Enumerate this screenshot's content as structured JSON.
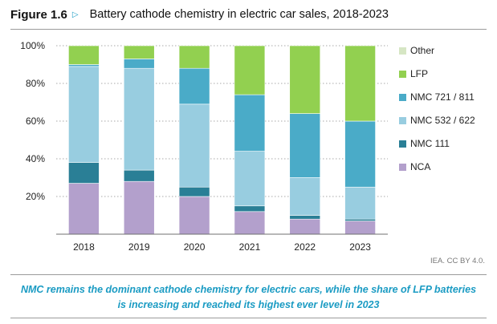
{
  "figure": {
    "label": "Figure 1.6",
    "arrow_icon": "play-outline-icon",
    "credit": "IEA. CC BY 4.0.",
    "caption": "NMC remains the dominant cathode chemistry for electric cars, while the share of LFP batteries is increasing and reached its highest ever level in 2023",
    "accent_color": "#1a9bc3"
  },
  "chart_data": {
    "type": "bar",
    "stacked": true,
    "title": "Battery cathode chemistry in electric car sales, 2018-2023",
    "xlabel": "",
    "ylabel": "",
    "ylim": [
      0,
      100
    ],
    "yticks": [
      20,
      40,
      60,
      80,
      100
    ],
    "ytick_labels": [
      "20%",
      "40%",
      "60%",
      "80%",
      "100%"
    ],
    "grid": true,
    "legend_position": "right",
    "categories": [
      "2018",
      "2019",
      "2020",
      "2021",
      "2022",
      "2023"
    ],
    "series": [
      {
        "name": "NCA",
        "color": "#b3a0cc",
        "values": [
          27,
          28,
          20,
          12,
          8,
          7
        ]
      },
      {
        "name": "NMC 111",
        "color": "#2a7f96",
        "values": [
          11,
          6,
          5,
          3,
          2,
          1
        ]
      },
      {
        "name": "NMC 532 / 622",
        "color": "#98cde0",
        "values": [
          51,
          54,
          44,
          29,
          20,
          17
        ]
      },
      {
        "name": "NMC 721 / 811",
        "color": "#4aabc8",
        "values": [
          1,
          5,
          19,
          30,
          34,
          35
        ]
      },
      {
        "name": "LFP",
        "color": "#92d050",
        "values": [
          10,
          7,
          12,
          26,
          36,
          40
        ]
      },
      {
        "name": "Other",
        "color": "#d6e6c4",
        "values": [
          0,
          0,
          0,
          0,
          0,
          0
        ]
      }
    ],
    "legend_order": [
      "Other",
      "LFP",
      "NMC 721 / 811",
      "NMC 532 / 622",
      "NMC 111",
      "NCA"
    ]
  }
}
